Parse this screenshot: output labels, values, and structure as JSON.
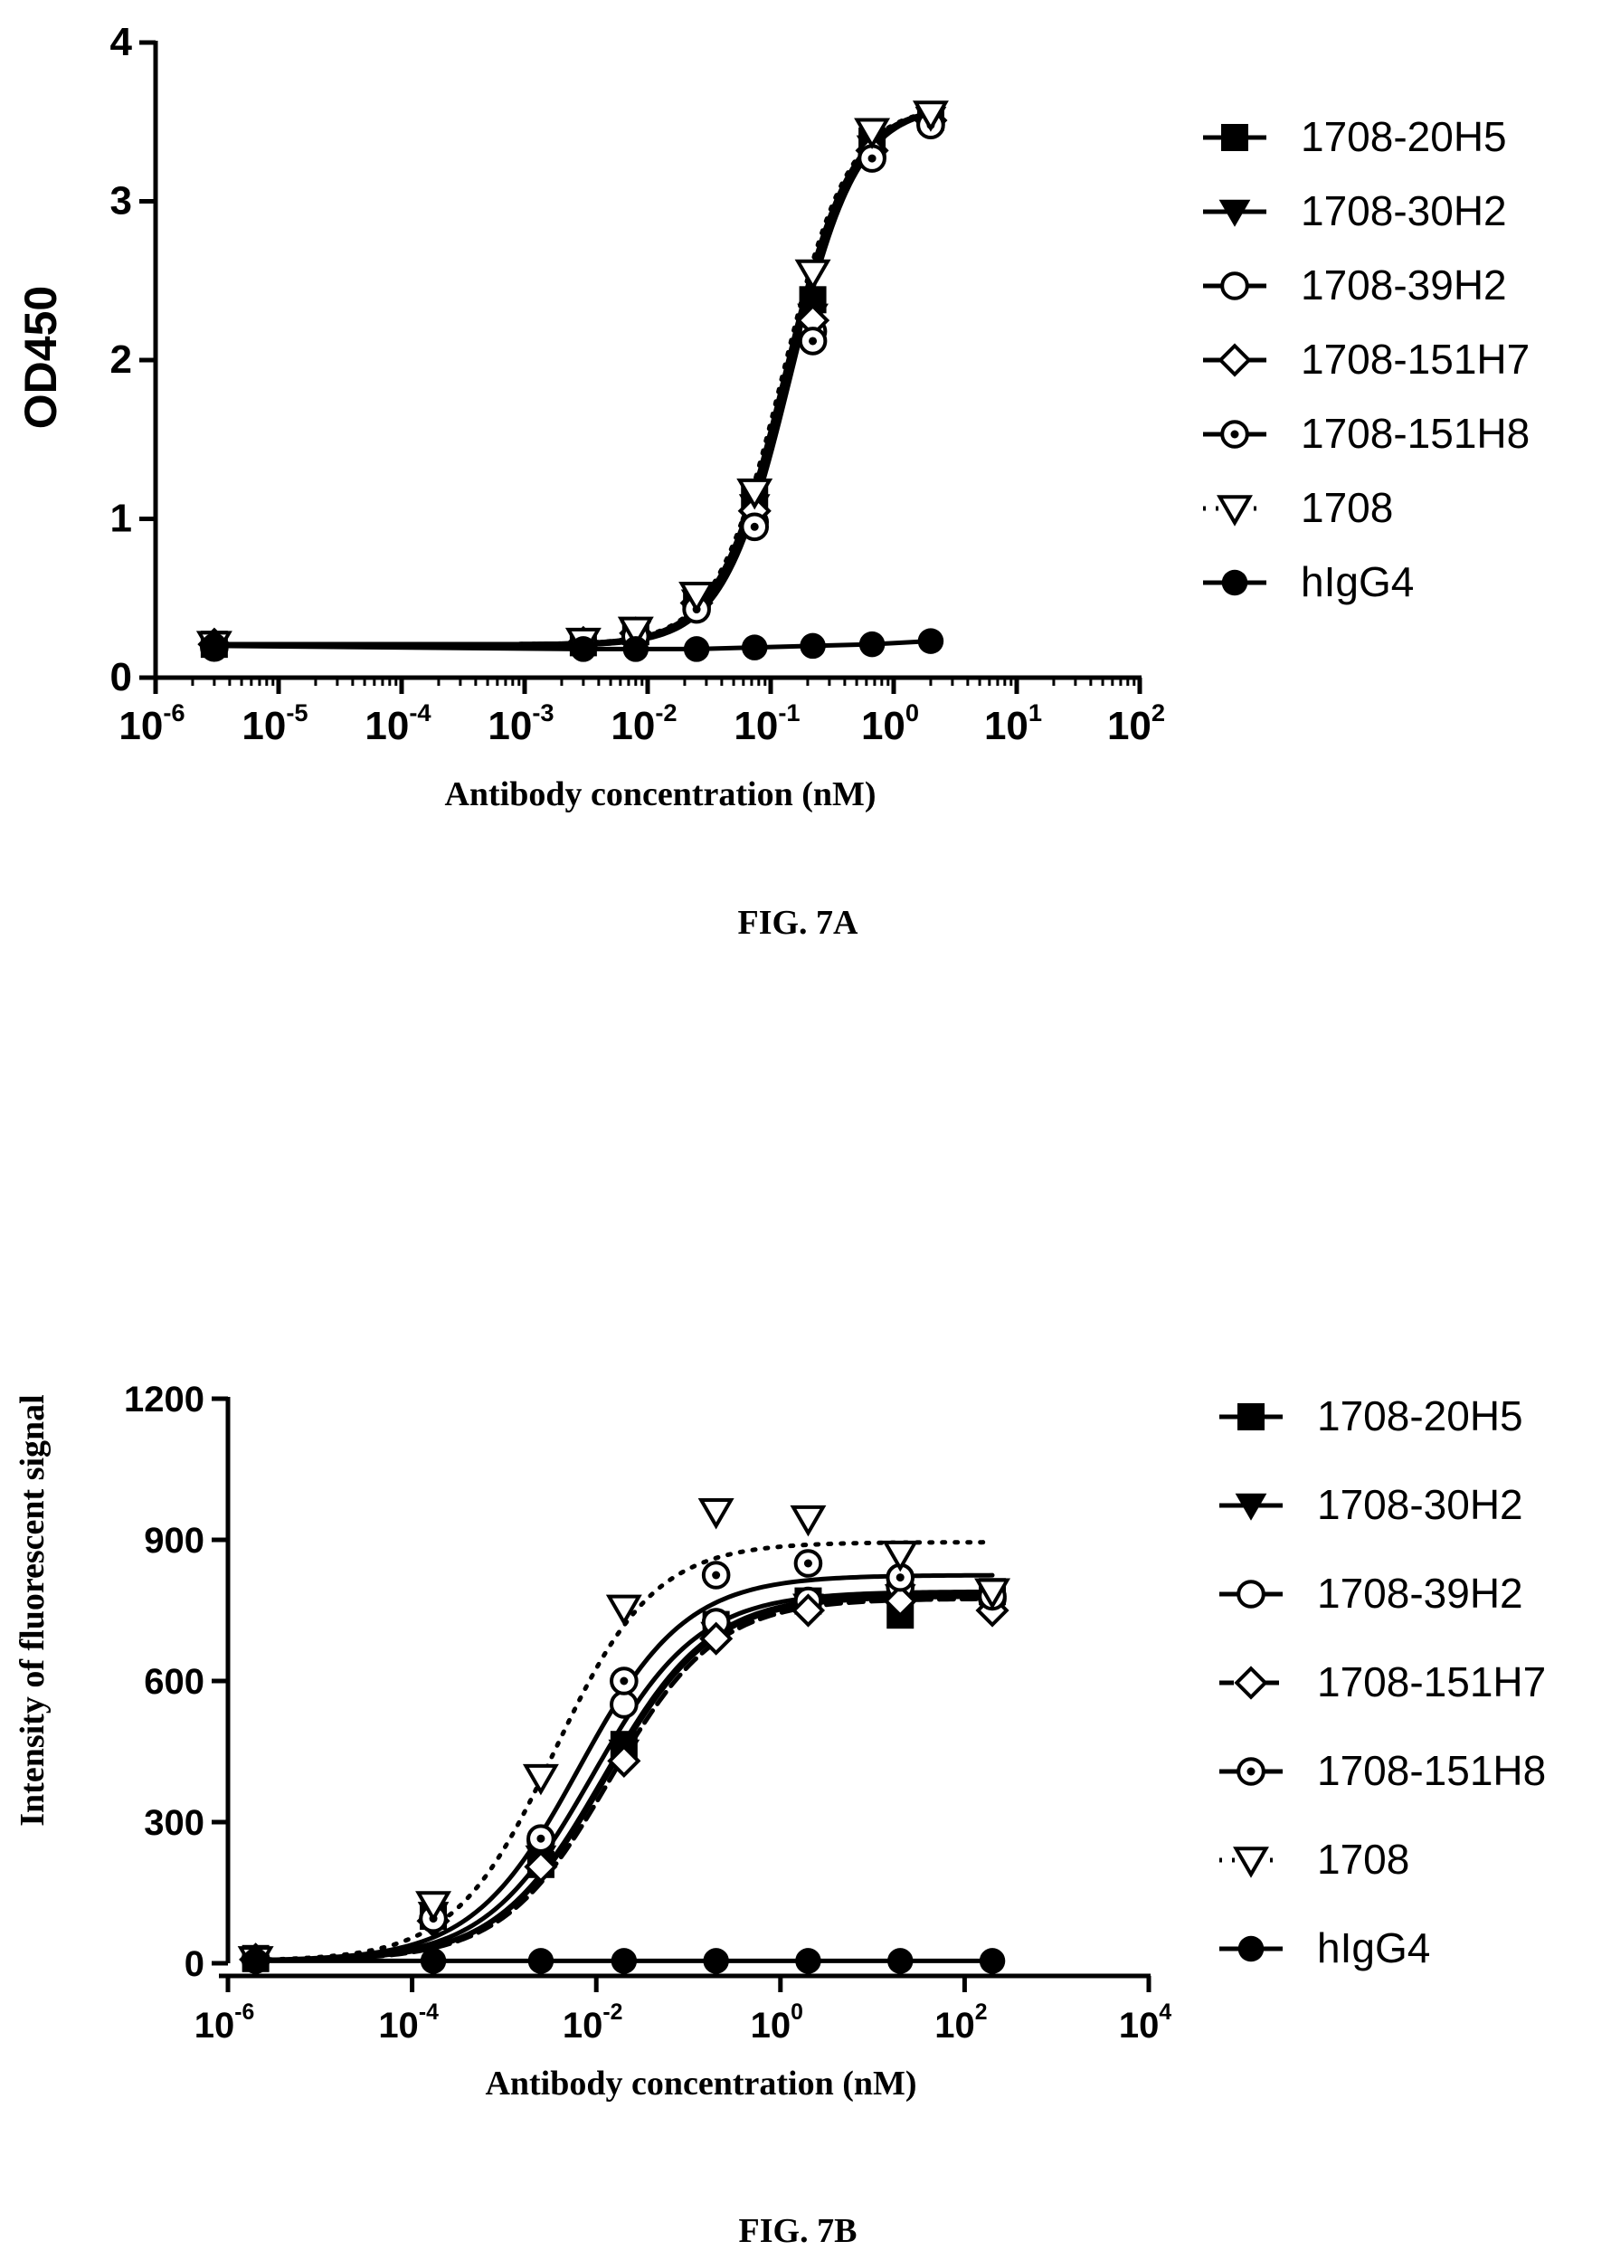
{
  "colors": {
    "ink": "#000000",
    "paper": "#ffffff"
  },
  "chart_data": [
    {
      "type": "line",
      "caption": "FIG. 7A",
      "xlabel": "Antibody concentration (nM)",
      "ylabel": "OD450",
      "x_scale": "log10",
      "xlim": [
        1e-06,
        100
      ],
      "ylim": [
        0,
        4
      ],
      "x_ticks": [
        -6,
        -5,
        -4,
        -3,
        -2,
        -1,
        0,
        1,
        2
      ],
      "y_ticks": [
        0,
        1,
        2,
        3,
        4
      ],
      "legend_position": "right",
      "grid": false,
      "x": [
        3e-06,
        0.003,
        0.008,
        0.025,
        0.074,
        0.22,
        0.667,
        2.0
      ],
      "series": [
        {
          "name": "1708-20H5",
          "marker": "square-filled",
          "line": "solid",
          "values": [
            0.21,
            0.22,
            0.29,
            0.5,
            1.13,
            2.38,
            3.38,
            3.53
          ],
          "fit": {
            "bottom": 0.21,
            "top": 3.6,
            "ec50": 0.13,
            "hill": 1.6
          }
        },
        {
          "name": "1708-30H2",
          "marker": "triangle-down-filled",
          "line": "solid",
          "values": [
            0.21,
            0.22,
            0.28,
            0.48,
            1.08,
            2.28,
            3.34,
            3.52
          ],
          "fit": {
            "bottom": 0.21,
            "top": 3.6,
            "ec50": 0.135,
            "hill": 1.6
          }
        },
        {
          "name": "1708-39H2",
          "marker": "circle-open",
          "line": "solid",
          "values": [
            0.2,
            0.21,
            0.27,
            0.45,
            0.98,
            2.18,
            3.28,
            3.49
          ],
          "fit": {
            "bottom": 0.2,
            "top": 3.6,
            "ec50": 0.14,
            "hill": 1.6
          }
        },
        {
          "name": "1708-151H7",
          "marker": "diamond-open",
          "line": "solid",
          "values": [
            0.21,
            0.22,
            0.28,
            0.47,
            1.05,
            2.25,
            3.32,
            3.51
          ],
          "fit": {
            "bottom": 0.21,
            "top": 3.6,
            "ec50": 0.135,
            "hill": 1.6
          }
        },
        {
          "name": "1708-151H8",
          "marker": "circle-dot",
          "line": "solid",
          "values": [
            0.19,
            0.21,
            0.26,
            0.43,
            0.95,
            2.12,
            3.27,
            3.48
          ],
          "fit": {
            "bottom": 0.2,
            "top": 3.6,
            "ec50": 0.145,
            "hill": 1.6
          }
        },
        {
          "name": "1708",
          "marker": "triangle-down-open",
          "line": "dotted",
          "values": [
            0.21,
            0.23,
            0.3,
            0.52,
            1.17,
            2.55,
            3.44,
            3.55
          ],
          "fit": {
            "bottom": 0.21,
            "top": 3.6,
            "ec50": 0.125,
            "hill": 1.6
          }
        },
        {
          "name": "hIgG4",
          "marker": "circle-filled",
          "line": "solid",
          "values": [
            0.2,
            0.18,
            0.18,
            0.18,
            0.19,
            0.2,
            0.21,
            0.23
          ],
          "fit": null
        }
      ]
    },
    {
      "type": "line",
      "caption": "FIG. 7B",
      "xlabel": "Antibody concentration (nM)",
      "ylabel": "Intensity of fluorescent signal",
      "x_scale": "log10",
      "xlim": [
        1e-06,
        10000
      ],
      "ylim": [
        0,
        1200
      ],
      "x_ticks": [
        -6,
        -4,
        -2,
        0,
        2,
        4
      ],
      "y_ticks": [
        0,
        300,
        600,
        900,
        1200
      ],
      "legend_position": "right",
      "grid": false,
      "x": [
        2e-06,
        0.00017,
        0.0025,
        0.02,
        0.2,
        2.0,
        20.0,
        200.0
      ],
      "series": [
        {
          "name": "1708-20H5",
          "marker": "square-filled",
          "line": "solid",
          "values": [
            10,
            100,
            210,
            465,
            720,
            770,
            740,
            790
          ],
          "fit": {
            "bottom": 5,
            "top": 785,
            "ec50": 0.012,
            "hill": 0.75
          }
        },
        {
          "name": "1708-30H2",
          "marker": "triangle-down-filled",
          "line": "solid",
          "values": [
            10,
            105,
            225,
            450,
            700,
            760,
            780,
            790
          ],
          "fit": {
            "bottom": 5,
            "top": 780,
            "ec50": 0.0125,
            "hill": 0.75
          }
        },
        {
          "name": "1708-39H2",
          "marker": "circle-open",
          "line": "solid",
          "values": [
            8,
            95,
            260,
            550,
            725,
            770,
            800,
            775
          ],
          "fit": {
            "bottom": 5,
            "top": 790,
            "ec50": 0.009,
            "hill": 0.75
          }
        },
        {
          "name": "1708-151H7",
          "marker": "diamond-open",
          "line": "dashed",
          "values": [
            8,
            90,
            205,
            430,
            690,
            750,
            770,
            750
          ],
          "fit": {
            "bottom": 5,
            "top": 775,
            "ec50": 0.014,
            "hill": 0.75
          }
        },
        {
          "name": "1708-151H8",
          "marker": "circle-dot",
          "line": "solid",
          "values": [
            8,
            95,
            265,
            600,
            825,
            850,
            820,
            780
          ],
          "fit": {
            "bottom": 5,
            "top": 825,
            "ec50": 0.0065,
            "hill": 0.75
          }
        },
        {
          "name": "1708",
          "marker": "triangle-down-open",
          "line": "dotted",
          "values": [
            8,
            125,
            395,
            755,
            960,
            945,
            870,
            790
          ],
          "fit": {
            "bottom": 5,
            "top": 895,
            "ec50": 0.0035,
            "hill": 0.8
          }
        },
        {
          "name": "hIgG4",
          "marker": "circle-filled",
          "line": "solid",
          "values": [
            5,
            5,
            5,
            5,
            5,
            5,
            5,
            5
          ],
          "fit": null
        }
      ]
    }
  ]
}
